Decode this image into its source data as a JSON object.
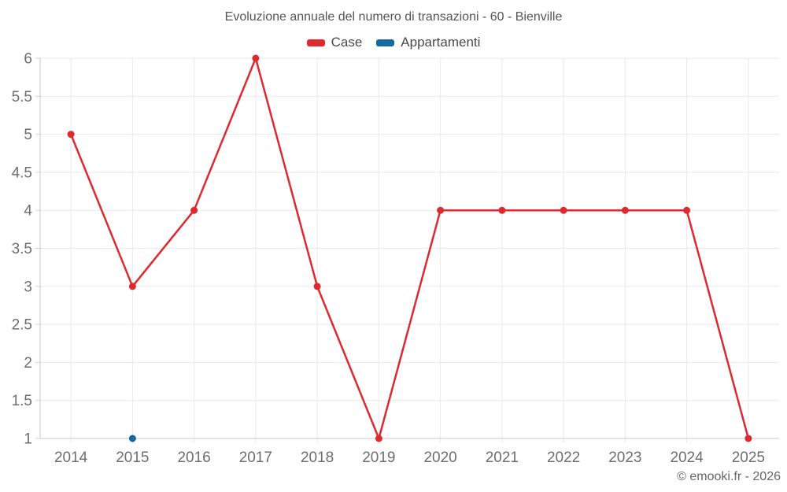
{
  "footer": {
    "copyright": "© emooki.fr - 2026"
  },
  "chart_data": {
    "type": "line",
    "title": "Evoluzione annuale del numero di transazioni - 60 - Bienville",
    "categories": [
      "2014",
      "2015",
      "2016",
      "2017",
      "2018",
      "2019",
      "2020",
      "2021",
      "2022",
      "2023",
      "2024",
      "2025"
    ],
    "series": [
      {
        "name": "Case",
        "color": "#dc2a30",
        "values": [
          5,
          3,
          4,
          6,
          3,
          1,
          4,
          4,
          4,
          4,
          4,
          1
        ]
      },
      {
        "name": "Appartamenti",
        "color": "#1569a0",
        "values": [
          null,
          1,
          null,
          null,
          null,
          null,
          null,
          null,
          null,
          null,
          null,
          null
        ]
      }
    ],
    "xlabel": "",
    "ylabel": "",
    "ylim": [
      1,
      6
    ],
    "ytick_step": 0.5,
    "grid": true,
    "legend_position": "top"
  }
}
